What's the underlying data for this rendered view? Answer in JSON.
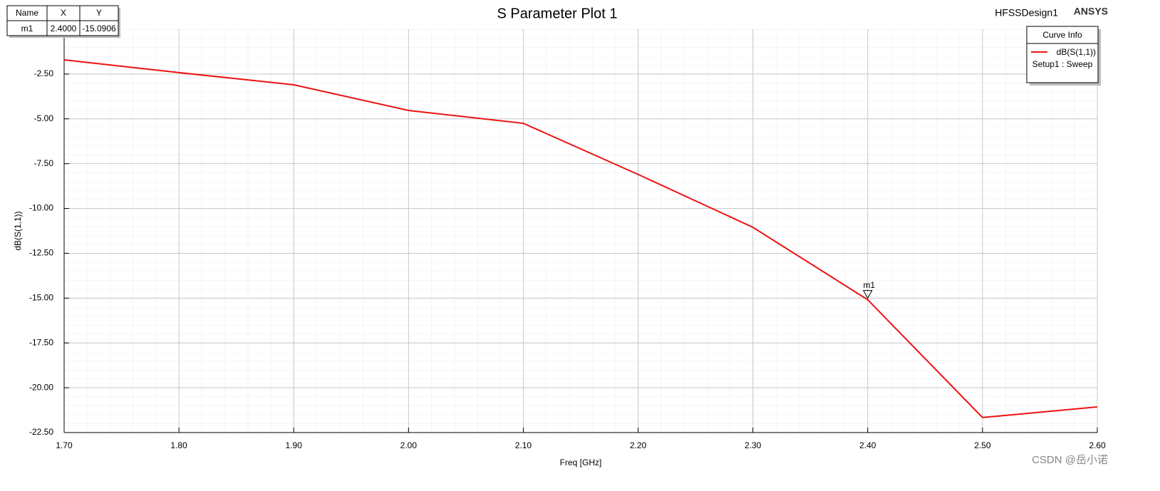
{
  "chart_data": {
    "type": "line",
    "title": "S Parameter Plot 1",
    "design_name": "HFSSDesign1",
    "brand": "ANSYS",
    "x_label": "Freq [GHz]",
    "y_label": "dB(S(1,1))",
    "x": [
      1.7,
      1.8,
      1.9,
      2.0,
      2.1,
      2.2,
      2.3,
      2.4,
      2.5,
      2.6
    ],
    "series": [
      {
        "name": "dB(S(1,1))",
        "color": "#ee1111",
        "values": [
          -1.71,
          -2.42,
          -3.1,
          -4.53,
          -5.25,
          -8.1,
          -11.05,
          -15.0906,
          -21.66,
          -21.07
        ]
      }
    ],
    "xlim": [
      1.7,
      2.6
    ],
    "ylim": [
      -22.5,
      0
    ],
    "xticks": [
      {
        "value": 1.7,
        "label": "1.70"
      },
      {
        "value": 1.8,
        "label": "1.80"
      },
      {
        "value": 1.9,
        "label": "1.90"
      },
      {
        "value": 2.0,
        "label": "2.00"
      },
      {
        "value": 2.1,
        "label": "2.10"
      },
      {
        "value": 2.2,
        "label": "2.20"
      },
      {
        "value": 2.3,
        "label": "2.30"
      },
      {
        "value": 2.4,
        "label": "2.40"
      },
      {
        "value": 2.5,
        "label": "2.50"
      },
      {
        "value": 2.6,
        "label": "2.60"
      }
    ],
    "yticks": [
      {
        "value": -22.5,
        "label": "-22.50"
      },
      {
        "value": -20,
        "label": "-20.00"
      },
      {
        "value": -17.5,
        "label": "-17.50"
      },
      {
        "value": -15,
        "label": "-15.00"
      },
      {
        "value": -12.5,
        "label": "-12.50"
      },
      {
        "value": -10,
        "label": "-10.00"
      },
      {
        "value": -7.5,
        "label": "-7.50"
      },
      {
        "value": -5,
        "label": "-5.00"
      },
      {
        "value": -2.5,
        "label": "-2.50"
      }
    ],
    "grid": true,
    "legend": {
      "title": "Curve Info",
      "subtitle": "Setup1 : Sweep",
      "position": "top-right"
    },
    "marker": {
      "label": "m1",
      "x": 2.4,
      "y": -15.0906
    },
    "marker_table": {
      "headers": [
        "Name",
        "X",
        "Y"
      ],
      "rows": [
        [
          "m1",
          "2.4000",
          "-15.0906"
        ]
      ]
    },
    "watermark": "CSDN @岳小诺"
  }
}
